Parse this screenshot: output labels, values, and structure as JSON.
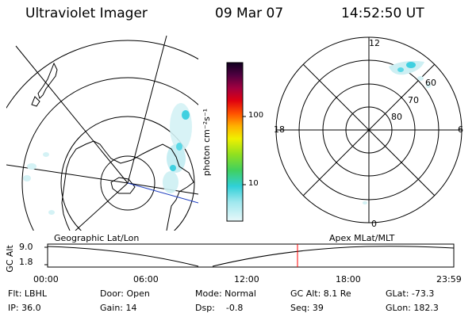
{
  "header": {
    "title": "Ultraviolet Imager",
    "date": "09 Mar 07",
    "time": "14:52:50 UT"
  },
  "colorbar": {
    "unit_label": "photon cm⁻²s⁻¹",
    "ticks": [
      "100",
      "10"
    ]
  },
  "apex_plot": {
    "mlt_labels": {
      "top": "12",
      "left": "18",
      "right": "6",
      "bottom": "0"
    },
    "lat_labels": [
      "60",
      "70",
      "80"
    ]
  },
  "altitude_plot": {
    "title_left": "Geographic Lat/Lon",
    "title_right": "Apex MLat/MLT",
    "ylabel": "GC Alt",
    "yticks": [
      "9.0",
      "1.8"
    ],
    "xticks": [
      "00:00",
      "06:00",
      "12:00",
      "18:00",
      "23:59"
    ]
  },
  "info": {
    "row1": {
      "flt": "Flt: LBHL",
      "door": "Door: Open",
      "mode": "Mode: Normal",
      "gcalt": "GC Alt: 8.1 Re",
      "glat": "GLat: -73.3"
    },
    "row2": {
      "ip": "IP: 36.0",
      "gain": "Gain: 14",
      "dsp": "Dsp:    -0.8",
      "seq": "Seq: 39",
      "glon": "GLon: 182.3"
    }
  },
  "colors": {
    "background": "#ffffff",
    "foreground": "#000000",
    "coastline": "#000000",
    "current_time_marker": "#ff0000",
    "orbit_track": "#2040c0",
    "aurora_low": "#b8e8ee",
    "aurora_mid": "#40d0e0"
  }
}
